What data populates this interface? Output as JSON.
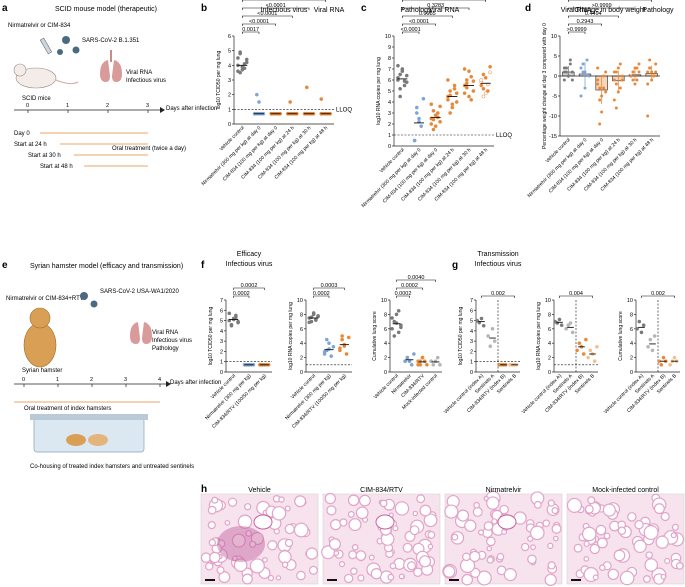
{
  "colors": {
    "control": "#7a7a7a",
    "nirmatrelvir": "#7da6d6",
    "cim": "#e8893a",
    "cim_light": "#f2c08e",
    "sentinel_gray": "#b5b5b5",
    "tissue": "#e3a3c9",
    "tissue_bg": "#f6e3ee",
    "tissue_edge": "#c7619f"
  },
  "panel_labels": {
    "a": "a",
    "b": "b",
    "c": "c",
    "d": "d",
    "e": "e",
    "f": "f",
    "g": "g",
    "h": "h"
  },
  "a": {
    "title": "SCID mouse model (therapeutic)",
    "drug": "Nirmatrelvir or CIM-834",
    "virus": "SARS-CoV-2 B.1.351",
    "readout1": "Viral RNA",
    "readout2": "Infectious virus",
    "host": "SCID mice",
    "axis_label": "Days after infection",
    "ticks": [
      "0",
      "1",
      "2",
      "3"
    ],
    "schedule": [
      "Day 0",
      "Start at 24 h",
      "Start at 30 h",
      "Start at 48 h"
    ],
    "treatment": "Oral treatment (twice a day)"
  },
  "e": {
    "title": "Syrian hamster model (efficacy and transmission)",
    "drug": "Nirmatrelvir or CIM-834+RTV",
    "virus": "SARS-CoV-2 USA-WA1/2020",
    "readouts": [
      "Viral RNA",
      "Infectious virus",
      "Pathology"
    ],
    "host": "Syrian hamster",
    "axis_label": "Days after infection",
    "ticks": [
      "0",
      "1",
      "2",
      "3",
      "4"
    ],
    "treatment": "Oral treatment of index hamsters",
    "housing": "Co-housing of treated index hamsters and untreated sentinels"
  },
  "h": {
    "labels": [
      "Vehicle",
      "CIM-834/RTV",
      "Nirmatrelvir",
      "Mock-infected control"
    ]
  },
  "chart_data": [
    {
      "id": "b",
      "type": "scatter",
      "title": "Infectious virus",
      "ylabel": "log10 TCID50 per mg lung",
      "ylim": [
        0,
        6
      ],
      "lloq": 1,
      "lloq_label": "LLOQ",
      "categories": [
        "Vehicle control",
        "Nirmatrelvir (300 mg per kg) at day 0",
        "CIM-834 (100 mg per kg) at day 0",
        "CIM-834 (100 mg per kg) at 24 h",
        "CIM-834 (100 mg per kg) at 30 h",
        "CIM-834 (100 mg per kg) at 48 h"
      ],
      "values": [
        [
          4.0,
          3.5,
          3.7,
          3.8,
          4.2,
          4.5,
          4.9,
          3.9,
          4.1,
          4.4,
          3.6,
          4.8
        ],
        [
          0.7,
          0.7,
          0.7,
          0.7,
          0.7,
          0.7,
          2.0,
          1.5
        ],
        [
          0.7,
          0.7,
          0.7,
          0.7,
          0.7,
          0.7,
          0.7,
          0.7,
          0.7,
          0.7,
          0.7,
          0.7
        ],
        [
          0.7,
          0.7,
          0.7,
          0.7,
          0.7,
          0.7,
          0.7,
          0.7,
          0.7,
          0.7,
          0.7,
          1.5
        ],
        [
          0.7,
          0.7,
          0.7,
          0.7,
          0.7,
          0.7,
          0.7,
          0.7,
          0.7,
          0.7,
          0.7,
          2.5
        ],
        [
          0.7,
          0.7,
          0.7,
          0.7,
          0.7,
          0.7,
          0.7,
          0.7,
          0.7,
          0.7,
          1.7,
          0.7
        ]
      ],
      "means": [
        4.0,
        0.7,
        0.7,
        0.7,
        0.7,
        0.7
      ],
      "pvalues": [
        "<0.0001",
        "<0.0001",
        "<0.0001",
        "<0.0001",
        "0.0017"
      ]
    },
    {
      "id": "c",
      "type": "scatter",
      "title": "Viral RNA",
      "ylabel": "log10 RNA copies per mg lung",
      "ylim": [
        0,
        10
      ],
      "lloq": 1,
      "lloq_label": "LLOQ",
      "categories": [
        "Vehicle control",
        "Nirmatrelvir (300 mg per kg) at day 0",
        "CIM-834 (100 mg per kg) at day 0",
        "CIM-834 (100 mg per kg) at 24 h",
        "CIM-834 (100 mg per kg) at 30 h",
        "CIM-834 (100 mg per kg) at 48 h"
      ],
      "values": [
        [
          6.0,
          6.5,
          7.0,
          5.5,
          5.8,
          6.2,
          4.5,
          6.8,
          5.9,
          6.4,
          7.3,
          5.2
        ],
        [
          0.5,
          3.5,
          2.2,
          1.8,
          4.3,
          0.5,
          3.0,
          2.5
        ],
        [
          2.5,
          3.2,
          1.8,
          2.6,
          3.6,
          2.0,
          1.5,
          2.8,
          3.0,
          2.2,
          3.8,
          2.4
        ],
        [
          4.5,
          5.0,
          3.8,
          5.5,
          4.0,
          6.0,
          4.6,
          3.5,
          5.2,
          4.8,
          4.2,
          3.0
        ],
        [
          5.5,
          6.0,
          4.5,
          6.3,
          5.0,
          4.8,
          5.7,
          6.8,
          4.2,
          5.9,
          7.0,
          5.3
        ],
        [
          5.8,
          6.5,
          4.8,
          5.0,
          6.7,
          5.5,
          4.5,
          6.2,
          5.6,
          7.2,
          6.0,
          5.2
        ]
      ],
      "means": [
        6.1,
        2.1,
        2.6,
        4.5,
        5.5,
        5.7
      ],
      "pvalues": [
        ">0.9999",
        "0.3283",
        "0.0085",
        "<0.0001",
        "<0.0001"
      ]
    },
    {
      "id": "d",
      "type": "bar",
      "title": "Change in body weight",
      "ylabel": "Percentage weight change at day 3 compared with day 0",
      "ylim": [
        -15,
        10
      ],
      "categories": [
        "Vehicle control",
        "Nirmatrelvir (300 mg per kg) at day 0",
        "CIM-834 (100 mg per kg) at day 0",
        "CIM-834 (100 mg per kg) at 24 h",
        "CIM-834 (100 mg per kg) at 30 h",
        "CIM-834 (100 mg per kg) at 48 h"
      ],
      "values": [
        1.0,
        0.5,
        -3.5,
        -1.2,
        0.3,
        0.6
      ],
      "errors": [
        1.5,
        3.0,
        3.5,
        2.5,
        1.5,
        2.0
      ],
      "points": [
        [
          1,
          2,
          0,
          3,
          -1,
          2,
          1,
          0,
          4,
          1,
          -1,
          2
        ],
        [
          2,
          1,
          -3,
          4,
          0,
          -5,
          3,
          1
        ],
        [
          -2,
          -6,
          -9,
          0,
          -4,
          2,
          -12,
          -5,
          -3,
          1,
          -1,
          -3
        ],
        [
          -1,
          -8,
          2,
          -3,
          0,
          1,
          -2,
          -4,
          3,
          -1,
          -6,
          1
        ],
        [
          0,
          1,
          2,
          -1,
          3,
          0,
          1,
          -2,
          2,
          1,
          0,
          -1
        ],
        [
          1,
          2,
          -1,
          0,
          3,
          -10,
          2,
          1,
          0,
          1,
          -2,
          4
        ]
      ],
      "pvalues": [
        ">0.9999",
        ">0.9999",
        "0.4494",
        "0.2943",
        ">0.9999"
      ]
    },
    {
      "id": "f1",
      "type": "scatter",
      "title": "Infectious virus",
      "ylabel": "log10 TCID50 per mg lung",
      "ylim": [
        0,
        7
      ],
      "lloq": 1,
      "categories": [
        "Vehicle control",
        "Nirmatrelvir (300 mg per kg)",
        "CIM-834/RTV (100/50 mg per kg)"
      ],
      "values": [
        [
          5.0,
          4.5,
          5.2,
          5.5,
          4.8,
          5.7,
          4.6,
          5.1,
          5.3,
          4.9
        ],
        [
          0.7,
          0.7,
          0.7,
          0.7,
          0.7,
          0.7,
          0.7,
          0.7
        ],
        [
          0.7,
          0.7,
          0.7,
          0.7,
          0.7,
          0.7,
          0.7,
          0.7
        ]
      ],
      "means": [
        5.1,
        0.7,
        0.7
      ],
      "pvalues": [
        "0.0002",
        "0.0002"
      ],
      "header": "Efficacy"
    },
    {
      "id": "f2",
      "type": "scatter",
      "title": "Viral RNA",
      "ylabel": "log10 RNA copies per mg lung",
      "ylim": [
        0,
        10
      ],
      "lloq": 1,
      "categories": [
        "Vehicle control",
        "Nirmatrelvir (300 mg per kg)",
        "CIM-834/RTV (100/50 mg per kg)"
      ],
      "values": [
        [
          7.5,
          7.0,
          8.0,
          7.2,
          7.8,
          6.9,
          7.6,
          8.2,
          7.3,
          7.7
        ],
        [
          2.5,
          3.0,
          4.0,
          2.2,
          3.5,
          2.8,
          4.5,
          3.2
        ],
        [
          3.0,
          4.5,
          3.8,
          2.5,
          4.8,
          3.3,
          5.0,
          3.6
        ]
      ],
      "means": [
        7.5,
        3.1,
        3.8
      ],
      "pvalues": [
        "0.0003",
        "0.0002"
      ]
    },
    {
      "id": "f3",
      "type": "scatter",
      "title": "Pathology",
      "ylabel": "Cumulative lung score",
      "ylim": [
        0,
        10
      ],
      "categories": [
        "Vehicle control",
        "Nirmatrelvir",
        "CIM-834/RTV",
        "Mock-infected control"
      ],
      "values": [
        [
          6.0,
          7.0,
          8.0,
          5.5,
          6.5,
          7.5,
          5.0,
          6.8,
          8.5,
          6.2
        ],
        [
          1.5,
          2.0,
          1.5,
          1.0,
          2.5,
          1.5,
          2.0,
          1.5
        ],
        [
          1.0,
          1.5,
          2.0,
          1.5,
          1.0,
          1.5,
          1.0,
          2.0
        ],
        [
          1.5,
          1.0,
          1.5,
          2.0,
          1.0,
          1.5
        ]
      ],
      "means": [
        6.7,
        1.7,
        1.4,
        1.4
      ],
      "pvalues": [
        "0.0040",
        "0.0002",
        "0.0002"
      ]
    },
    {
      "id": "g1",
      "type": "scatter",
      "title": "Infectious virus",
      "ylabel": "log10 TCID50 per mg lung",
      "ylim": [
        0,
        7
      ],
      "lloq": 1,
      "categories": [
        "Vehicle control (index A)",
        "Sentinels A",
        "CIM-834/RTV (index B)",
        "Sentinels B"
      ],
      "values": [
        [
          5.0,
          4.8,
          5.2,
          4.5
        ],
        [
          3.5,
          2.5,
          4.2,
          3.0
        ],
        [
          0.7,
          0.7,
          0.7,
          0.7
        ],
        [
          0.7,
          0.7,
          0.7,
          0.7
        ]
      ],
      "means": [
        4.9,
        3.3,
        0.7,
        0.7
      ],
      "pvalues": [
        "0.002"
      ],
      "header": "Transmission"
    },
    {
      "id": "g2",
      "type": "scatter",
      "title": "Viral RNA",
      "ylabel": "log10 RNA copies per mg lung",
      "ylim": [
        0,
        10
      ],
      "lloq": 1,
      "categories": [
        "Vehicle control (index A)",
        "Sentinels A",
        "CIM-834/RTV (index B)",
        "Sentinels B"
      ],
      "values": [
        [
          7.0,
          6.8,
          7.3,
          6.5
        ],
        [
          6.0,
          6.5,
          6.8,
          5.5
        ],
        [
          3.0,
          4.0,
          3.5,
          2.5,
          4.5
        ],
        [
          2.0,
          3.0,
          2.5,
          1.5,
          3.5
        ]
      ],
      "means": [
        6.9,
        6.2,
        3.5,
        2.5
      ],
      "pvalues": [
        "0.004"
      ]
    },
    {
      "id": "g3",
      "type": "scatter",
      "title": "Pathology",
      "ylabel": "Cumulative lung score",
      "ylim": [
        0,
        10
      ],
      "categories": [
        "Vehicle control (index A)",
        "Sentinels A",
        "CIM-834/RTV (index B)",
        "Sentinels B"
      ],
      "values": [
        [
          6.0,
          7.0,
          5.5,
          6.5
        ],
        [
          3.5,
          4.5,
          3.0,
          5.0
        ],
        [
          1.5,
          1.0,
          2.0,
          1.5
        ],
        [
          1.0,
          1.5,
          2.0,
          1.5
        ]
      ],
      "means": [
        6.2,
        3.9,
        1.5,
        1.5
      ],
      "pvalues": [
        "0.002"
      ]
    }
  ]
}
